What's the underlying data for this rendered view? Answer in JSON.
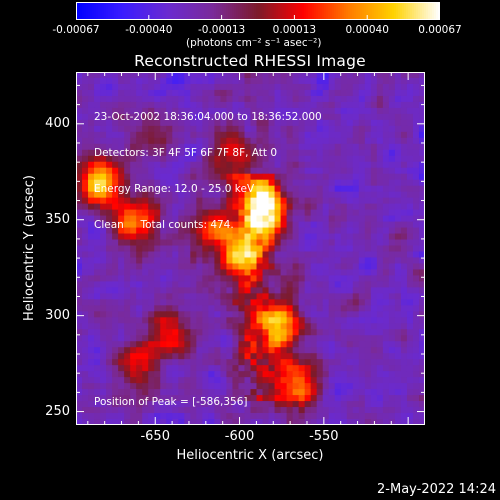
{
  "colorbar": {
    "tick_labels": [
      "-0.00067",
      "-0.00040",
      "-0.00013",
      "0.00013",
      "0.00040",
      "0.00067"
    ],
    "unit_label": "(photons cm⁻² s⁻¹ asec⁻²)",
    "range": [
      -0.00067,
      0.00067
    ],
    "colors": [
      "#0000ff",
      "#3a1cff",
      "#6a2ad0",
      "#7a2a9a",
      "#7c1a2a",
      "#ff0000",
      "#ff7a00",
      "#ffd200",
      "#ffffff"
    ]
  },
  "chart_data": {
    "type": "heatmap",
    "title": "Reconstructed RHESSI Image",
    "xlabel": "Heliocentric X (arcsec)",
    "ylabel": "Heliocentric Y (arcsec)",
    "xlim": [
      -697,
      -490
    ],
    "ylim": [
      243,
      427
    ],
    "x_ticks": [
      -650,
      -600,
      -550
    ],
    "y_ticks": [
      250,
      300,
      350,
      400
    ],
    "x_tick_labels": [
      "-650",
      "-600",
      "-550"
    ],
    "y_tick_labels": [
      "250",
      "300",
      "350",
      "400"
    ],
    "peak": [
      -586,
      356
    ],
    "hot_regions": [
      {
        "x": -586,
        "y": 356,
        "intensity": 1.0
      },
      {
        "x": -683,
        "y": 369,
        "intensity": 0.95
      },
      {
        "x": -662,
        "y": 349,
        "intensity": 0.8
      },
      {
        "x": -600,
        "y": 333,
        "intensity": 0.7
      },
      {
        "x": -575,
        "y": 295,
        "intensity": 0.75
      },
      {
        "x": -565,
        "y": 265,
        "intensity": 0.7
      },
      {
        "x": -640,
        "y": 292,
        "intensity": 0.55
      },
      {
        "x": -660,
        "y": 275,
        "intensity": 0.45
      },
      {
        "x": -618,
        "y": 345,
        "intensity": 0.55
      },
      {
        "x": -650,
        "y": 395,
        "intensity": 0.4
      },
      {
        "x": -607,
        "y": 385,
        "intensity": 0.45
      }
    ]
  },
  "annotation": {
    "lines": [
      "23-Oct-2002 18:36:04.000 to 18:36:52.000",
      "Detectors: 3F 4F 5F 6F 7F 8F, Att 0",
      "Energy Range: 12.0 - 25.0 keV",
      "Clean     Total counts: 474."
    ],
    "peak_text": "Position of Peak = [-586,356]"
  },
  "footer": {
    "timestamp": "2-May-2022 14:24"
  }
}
